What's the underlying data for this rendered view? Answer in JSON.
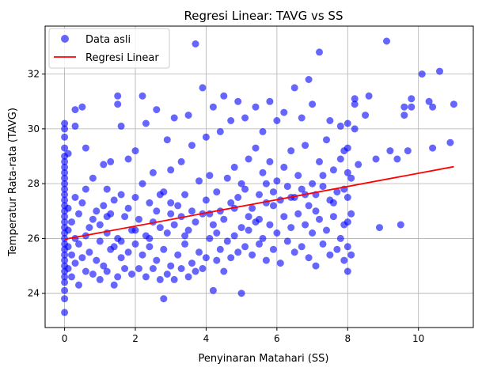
{
  "chart_data": {
    "type": "scatter",
    "title": "Regresi Linear: TAVG vs SS",
    "xlabel": "Penyinaran Matahari (SS)",
    "ylabel": "Temperatur Rata-rata (TAVG)",
    "xlim": [
      -0.55,
      11.55
    ],
    "ylim": [
      22.75,
      33.75
    ],
    "xticks": [
      0,
      2,
      4,
      6,
      8,
      10
    ],
    "yticks": [
      24,
      26,
      28,
      30,
      32
    ],
    "grid": true,
    "legend_position": "top-left",
    "series": [
      {
        "name": "Data asli",
        "kind": "scatter",
        "color": "#0000ff",
        "opacity": 0.6,
        "points": [
          [
            0,
            23.3
          ],
          [
            0,
            23.8
          ],
          [
            0,
            24.1
          ],
          [
            0,
            24.4
          ],
          [
            0,
            24.6
          ],
          [
            0,
            24.8
          ],
          [
            0,
            25.0
          ],
          [
            0,
            25.2
          ],
          [
            0,
            25.4
          ],
          [
            0,
            25.6
          ],
          [
            0,
            25.8
          ],
          [
            0,
            26.0
          ],
          [
            0,
            26.2
          ],
          [
            0,
            26.4
          ],
          [
            0,
            26.6
          ],
          [
            0,
            26.8
          ],
          [
            0,
            27.0
          ],
          [
            0,
            27.2
          ],
          [
            0,
            27.4
          ],
          [
            0,
            27.6
          ],
          [
            0,
            27.8
          ],
          [
            0,
            28.0
          ],
          [
            0,
            28.2
          ],
          [
            0,
            28.4
          ],
          [
            0,
            28.6
          ],
          [
            0,
            28.8
          ],
          [
            0,
            29.0
          ],
          [
            0,
            29.3
          ],
          [
            0,
            29.7
          ],
          [
            0,
            30.0
          ],
          [
            0,
            30.2
          ],
          [
            0.1,
            24.9
          ],
          [
            0.1,
            25.7
          ],
          [
            0.1,
            26.3
          ],
          [
            0.1,
            27.1
          ],
          [
            0.1,
            29.1
          ],
          [
            0.2,
            24.6
          ],
          [
            0.2,
            25.4
          ],
          [
            0.2,
            26.6
          ],
          [
            0.3,
            25.1
          ],
          [
            0.3,
            26.0
          ],
          [
            0.3,
            27.5
          ],
          [
            0.3,
            30.7
          ],
          [
            0.3,
            30.1
          ],
          [
            0.4,
            24.3
          ],
          [
            0.4,
            25.8
          ],
          [
            0.4,
            26.9
          ],
          [
            0.5,
            25.3
          ],
          [
            0.5,
            27.3
          ],
          [
            0.5,
            30.8
          ],
          [
            0.6,
            24.8
          ],
          [
            0.6,
            26.1
          ],
          [
            0.6,
            29.3
          ],
          [
            0.7,
            25.5
          ],
          [
            0.7,
            26.4
          ],
          [
            0.8,
            24.7
          ],
          [
            0.8,
            26.7
          ],
          [
            0.8,
            28.2
          ],
          [
            0.9,
            25.2
          ],
          [
            0.9,
            27.0
          ],
          [
            1.0,
            24.5
          ],
          [
            1.0,
            25.9
          ],
          [
            1.0,
            26.5
          ],
          [
            1.1,
            25.0
          ],
          [
            1.1,
            27.2
          ],
          [
            1.1,
            28.7
          ],
          [
            1.2,
            24.8
          ],
          [
            1.2,
            26.2
          ],
          [
            1.2,
            27.8
          ],
          [
            1.3,
            25.6
          ],
          [
            1.3,
            26.9
          ],
          [
            1.3,
            28.8
          ],
          [
            1.4,
            24.3
          ],
          [
            1.4,
            25.7
          ],
          [
            1.4,
            27.4
          ],
          [
            1.5,
            24.6
          ],
          [
            1.5,
            26.0
          ],
          [
            1.5,
            31.2
          ],
          [
            1.5,
            30.9
          ],
          [
            1.6,
            25.3
          ],
          [
            1.6,
            27.6
          ],
          [
            1.6,
            30.1
          ],
          [
            1.7,
            24.9
          ],
          [
            1.7,
            26.8
          ],
          [
            1.8,
            25.5
          ],
          [
            1.8,
            27.1
          ],
          [
            1.8,
            28.9
          ],
          [
            1.9,
            24.7
          ],
          [
            1.9,
            26.3
          ],
          [
            2.0,
            25.8
          ],
          [
            2.0,
            27.5
          ],
          [
            2.0,
            29.2
          ],
          [
            2.1,
            24.9
          ],
          [
            2.1,
            26.7
          ],
          [
            2.2,
            25.4
          ],
          [
            2.2,
            28.0
          ],
          [
            2.2,
            31.2
          ],
          [
            2.3,
            24.6
          ],
          [
            2.3,
            26.1
          ],
          [
            2.3,
            30.2
          ],
          [
            2.4,
            25.7
          ],
          [
            2.4,
            27.3
          ],
          [
            2.5,
            24.9
          ],
          [
            2.5,
            26.6
          ],
          [
            2.5,
            28.4
          ],
          [
            2.6,
            25.2
          ],
          [
            2.6,
            27.0
          ],
          [
            2.6,
            30.7
          ],
          [
            2.7,
            24.5
          ],
          [
            2.7,
            26.4
          ],
          [
            2.8,
            23.8
          ],
          [
            2.8,
            25.6
          ],
          [
            2.8,
            27.7
          ],
          [
            2.9,
            24.7
          ],
          [
            2.9,
            26.2
          ],
          [
            2.9,
            29.6
          ],
          [
            3.0,
            25.0
          ],
          [
            3.0,
            26.9
          ],
          [
            3.0,
            28.5
          ],
          [
            3.1,
            24.5
          ],
          [
            3.1,
            26.5
          ],
          [
            3.1,
            30.4
          ],
          [
            3.2,
            25.4
          ],
          [
            3.2,
            27.2
          ],
          [
            3.3,
            24.9
          ],
          [
            3.3,
            26.8
          ],
          [
            3.3,
            28.8
          ],
          [
            3.4,
            25.8
          ],
          [
            3.4,
            27.6
          ],
          [
            3.5,
            24.6
          ],
          [
            3.5,
            26.3
          ],
          [
            3.5,
            30.5
          ],
          [
            3.6,
            25.1
          ],
          [
            3.6,
            27.0
          ],
          [
            3.6,
            29.4
          ],
          [
            3.7,
            33.1
          ],
          [
            3.7,
            24.8
          ],
          [
            3.7,
            26.6
          ],
          [
            3.8,
            25.5
          ],
          [
            3.8,
            28.1
          ],
          [
            3.9,
            24.9
          ],
          [
            3.9,
            26.9
          ],
          [
            3.9,
            31.5
          ],
          [
            4.0,
            25.3
          ],
          [
            4.0,
            27.4
          ],
          [
            4.0,
            29.7
          ],
          [
            4.1,
            26.0
          ],
          [
            4.1,
            28.3
          ],
          [
            4.2,
            24.1
          ],
          [
            4.2,
            26.5
          ],
          [
            4.2,
            30.8
          ],
          [
            4.3,
            25.2
          ],
          [
            4.3,
            27.7
          ],
          [
            4.4,
            25.6
          ],
          [
            4.4,
            27.0
          ],
          [
            4.4,
            29.9
          ],
          [
            4.5,
            24.8
          ],
          [
            4.5,
            26.7
          ],
          [
            4.5,
            31.2
          ],
          [
            4.6,
            25.9
          ],
          [
            4.6,
            28.2
          ],
          [
            4.7,
            25.3
          ],
          [
            4.7,
            27.3
          ],
          [
            4.7,
            30.3
          ],
          [
            4.8,
            26.1
          ],
          [
            4.8,
            28.6
          ],
          [
            4.9,
            25.5
          ],
          [
            4.9,
            27.5
          ],
          [
            4.9,
            31.0
          ],
          [
            5.0,
            24.0
          ],
          [
            5.0,
            26.4
          ],
          [
            5.0,
            28.0
          ],
          [
            5.1,
            25.7
          ],
          [
            5.1,
            27.8
          ],
          [
            5.1,
            30.4
          ],
          [
            5.2,
            26.3
          ],
          [
            5.2,
            28.9
          ],
          [
            5.3,
            25.4
          ],
          [
            5.3,
            27.1
          ],
          [
            5.4,
            26.6
          ],
          [
            5.4,
            29.3
          ],
          [
            5.4,
            30.8
          ],
          [
            5.5,
            25.8
          ],
          [
            5.5,
            27.6
          ],
          [
            5.6,
            26.0
          ],
          [
            5.6,
            28.4
          ],
          [
            5.6,
            29.9
          ],
          [
            5.7,
            25.2
          ],
          [
            5.7,
            27.3
          ],
          [
            5.8,
            26.5
          ],
          [
            5.8,
            28.8
          ],
          [
            5.8,
            31.0
          ],
          [
            5.9,
            25.6
          ],
          [
            5.9,
            27.7
          ],
          [
            6.0,
            26.2
          ],
          [
            6.0,
            28.1
          ],
          [
            6.0,
            30.3
          ],
          [
            6.1,
            25.1
          ],
          [
            6.1,
            27.4
          ],
          [
            6.2,
            26.8
          ],
          [
            6.2,
            28.6
          ],
          [
            6.2,
            30.6
          ],
          [
            6.3,
            25.9
          ],
          [
            6.3,
            27.9
          ],
          [
            6.4,
            26.4
          ],
          [
            6.4,
            29.2
          ],
          [
            6.5,
            25.5
          ],
          [
            6.5,
            27.5
          ],
          [
            6.5,
            31.5
          ],
          [
            6.6,
            26.9
          ],
          [
            6.6,
            28.3
          ],
          [
            6.7,
            25.7
          ],
          [
            6.7,
            27.8
          ],
          [
            6.7,
            30.4
          ],
          [
            6.8,
            26.5
          ],
          [
            6.8,
            29.4
          ],
          [
            6.9,
            25.3
          ],
          [
            6.9,
            27.2
          ],
          [
            6.9,
            31.8
          ],
          [
            7.0,
            26.2
          ],
          [
            7.0,
            28.0
          ],
          [
            7.0,
            30.9
          ],
          [
            7.1,
            25.0
          ],
          [
            7.1,
            27.6
          ],
          [
            7.2,
            26.7
          ],
          [
            7.2,
            28.8
          ],
          [
            7.2,
            32.8
          ],
          [
            7.3,
            25.8
          ],
          [
            7.3,
            27.9
          ],
          [
            7.4,
            26.3
          ],
          [
            7.4,
            29.6
          ],
          [
            7.5,
            25.4
          ],
          [
            7.5,
            27.4
          ],
          [
            7.5,
            30.3
          ],
          [
            7.6,
            26.8
          ],
          [
            7.6,
            28.5
          ],
          [
            7.7,
            25.6
          ],
          [
            7.7,
            27.7
          ],
          [
            7.8,
            26.0
          ],
          [
            7.8,
            28.9
          ],
          [
            7.8,
            30.1
          ],
          [
            7.9,
            25.2
          ],
          [
            7.9,
            26.5
          ],
          [
            7.9,
            27.8
          ],
          [
            7.9,
            29.2
          ],
          [
            8.0,
            24.8
          ],
          [
            8.0,
            25.7
          ],
          [
            8.0,
            26.6
          ],
          [
            8.0,
            27.5
          ],
          [
            8.0,
            28.4
          ],
          [
            8.0,
            29.3
          ],
          [
            8.0,
            30.2
          ],
          [
            8.1,
            25.4
          ],
          [
            8.1,
            26.9
          ],
          [
            8.1,
            28.2
          ],
          [
            8.2,
            30.9
          ],
          [
            8.2,
            31.1
          ],
          [
            8.2,
            30.0
          ],
          [
            8.3,
            28.7
          ],
          [
            8.5,
            30.5
          ],
          [
            8.6,
            31.2
          ],
          [
            8.8,
            28.9
          ],
          [
            8.9,
            26.4
          ],
          [
            9.1,
            33.2
          ],
          [
            9.2,
            29.2
          ],
          [
            9.4,
            28.9
          ],
          [
            9.5,
            26.5
          ],
          [
            9.6,
            30.8
          ],
          [
            9.6,
            30.5
          ],
          [
            9.7,
            29.2
          ],
          [
            9.8,
            30.8
          ],
          [
            9.8,
            31.1
          ],
          [
            10.1,
            32.0
          ],
          [
            10.3,
            31.0
          ],
          [
            10.4,
            29.3
          ],
          [
            10.4,
            30.8
          ],
          [
            10.6,
            32.1
          ],
          [
            10.9,
            29.5
          ],
          [
            11.0,
            30.9
          ],
          [
            0.6,
            27.8
          ],
          [
            1.2,
            26.8
          ],
          [
            2.0,
            26.3
          ],
          [
            2.7,
            27.6
          ],
          [
            3.4,
            26.1
          ],
          [
            4.1,
            26.9
          ],
          [
            4.8,
            27.1
          ],
          [
            5.2,
            26.8
          ],
          [
            5.9,
            27.2
          ],
          [
            6.4,
            27.5
          ],
          [
            7.1,
            27.0
          ],
          [
            7.6,
            27.3
          ],
          [
            3.0,
            27.3
          ],
          [
            5.5,
            26.7
          ],
          [
            6.8,
            27.6
          ],
          [
            2.4,
            26.0
          ],
          [
            1.6,
            25.9
          ],
          [
            4.3,
            26.2
          ],
          [
            5.7,
            28.0
          ],
          [
            7.3,
            28.3
          ]
        ]
      },
      {
        "name": "Regresi Linear",
        "kind": "line",
        "color": "#ff0000",
        "x": [
          0,
          11
        ],
        "y": [
          25.97,
          28.62
        ]
      }
    ]
  }
}
